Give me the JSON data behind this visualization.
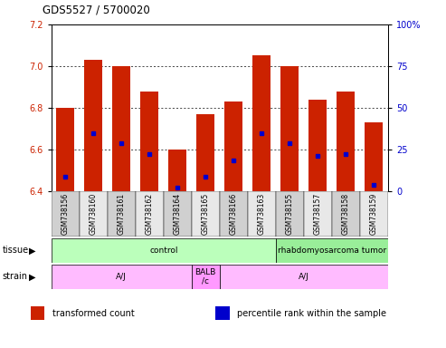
{
  "title": "GDS5527 / 5700020",
  "samples": [
    "GSM738156",
    "GSM738160",
    "GSM738161",
    "GSM738162",
    "GSM738164",
    "GSM738165",
    "GSM738166",
    "GSM738163",
    "GSM738155",
    "GSM738157",
    "GSM738158",
    "GSM738159"
  ],
  "bar_tops": [
    6.8,
    7.03,
    7.0,
    6.88,
    6.6,
    6.77,
    6.83,
    7.05,
    7.0,
    6.84,
    6.88,
    6.73
  ],
  "bar_bottoms": [
    6.4,
    6.4,
    6.4,
    6.4,
    6.4,
    6.4,
    6.4,
    6.4,
    6.4,
    6.4,
    6.4,
    6.4
  ],
  "blue_dot_y": [
    6.47,
    6.68,
    6.63,
    6.58,
    6.42,
    6.47,
    6.55,
    6.68,
    6.63,
    6.57,
    6.58,
    6.43
  ],
  "ylim": [
    6.4,
    7.2
  ],
  "yticks": [
    6.4,
    6.6,
    6.8,
    7.0,
    7.2
  ],
  "y2ticks": [
    0,
    25,
    50,
    75,
    100
  ],
  "y2labels": [
    "0",
    "25",
    "50",
    "75",
    "100%"
  ],
  "bar_color": "#cc2200",
  "blue_color": "#0000cc",
  "tissue_groups": [
    {
      "label": "control",
      "start": 0,
      "end": 8,
      "color": "#bbffbb"
    },
    {
      "label": "rhabdomyosarcoma tumor",
      "start": 8,
      "end": 12,
      "color": "#99ee99"
    }
  ],
  "strain_groups": [
    {
      "label": "A/J",
      "start": 0,
      "end": 5,
      "color": "#ffbbff"
    },
    {
      "label": "BALB\n/c",
      "start": 5,
      "end": 6,
      "color": "#ff99ff"
    },
    {
      "label": "A/J",
      "start": 6,
      "end": 12,
      "color": "#ffbbff"
    }
  ],
  "tissue_label": "tissue",
  "strain_label": "strain",
  "tick_label_color_left": "#cc2200",
  "tick_label_color_right": "#0000cc"
}
